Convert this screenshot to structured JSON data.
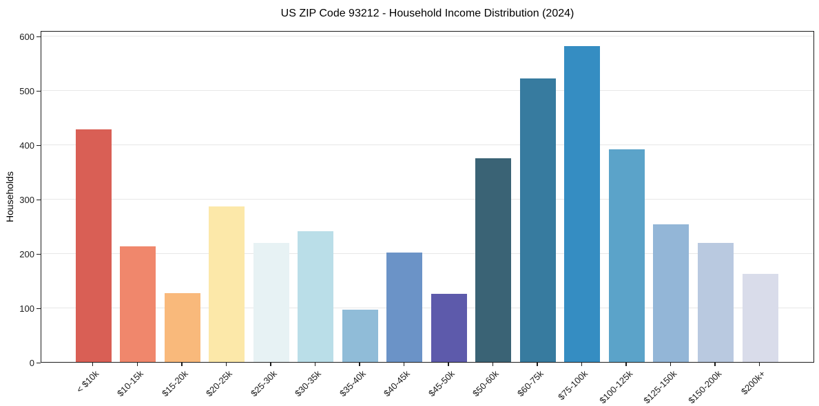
{
  "chart_data": {
    "type": "bar",
    "title": "US ZIP Code 93212 - Household Income Distribution (2024)",
    "xlabel": "",
    "ylabel": "Households",
    "categories": [
      "< $10k",
      "$10-15k",
      "$15-20k",
      "$20-25k",
      "$25-30k",
      "$30-35k",
      "$35-40k",
      "$40-45k",
      "$45-50k",
      "$50-60k",
      "$60-75k",
      "$75-100k",
      "$100-125k",
      "$125-150k",
      "$150-200k",
      "$200k+"
    ],
    "values": [
      428,
      213,
      127,
      286,
      219,
      241,
      96,
      201,
      126,
      375,
      522,
      582,
      392,
      254,
      219,
      162
    ],
    "bar_colors": [
      "#d95f55",
      "#f0876c",
      "#f9b97b",
      "#fce8a9",
      "#e7f2f4",
      "#badee8",
      "#90bcd8",
      "#6b93c7",
      "#5d5aab",
      "#3a6375",
      "#377b9f",
      "#358dc2",
      "#5ba3c9",
      "#93b6d7",
      "#b9c9e0",
      "#d9dcea"
    ],
    "yticks": [
      0,
      100,
      200,
      300,
      400,
      500,
      600
    ],
    "ylim": [
      0,
      611
    ],
    "grid": "horizontal",
    "grid_color": "#e7e7e7",
    "axis_color": "#1a1a1a",
    "legend_position": "none"
  }
}
